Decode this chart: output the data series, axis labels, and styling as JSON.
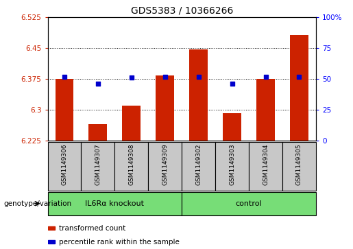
{
  "title": "GDS5383 / 10366266",
  "samples": [
    "GSM1149306",
    "GSM1149307",
    "GSM1149308",
    "GSM1149309",
    "GSM1149302",
    "GSM1149303",
    "GSM1149304",
    "GSM1149305"
  ],
  "transformed_counts": [
    6.375,
    6.265,
    6.31,
    6.383,
    6.447,
    6.292,
    6.375,
    6.482
  ],
  "percentile_ranks": [
    52,
    46,
    51,
    52,
    52,
    46,
    52,
    52
  ],
  "group1_label": "IL6Rα knockout",
  "group2_label": "control",
  "group_color": "#77DD77",
  "ylim_left": [
    6.225,
    6.525
  ],
  "ylim_right": [
    0,
    100
  ],
  "yticks_left": [
    6.225,
    6.3,
    6.375,
    6.45,
    6.525
  ],
  "yticks_right": [
    0,
    25,
    50,
    75,
    100
  ],
  "bar_color": "#CC2200",
  "dot_color": "#0000CC",
  "sample_box_color": "#C8C8C8",
  "legend_bar_label": "transformed count",
  "legend_dot_label": "percentile rank within the sample",
  "bar_width": 0.55,
  "genotype_label": "genotype/variation"
}
